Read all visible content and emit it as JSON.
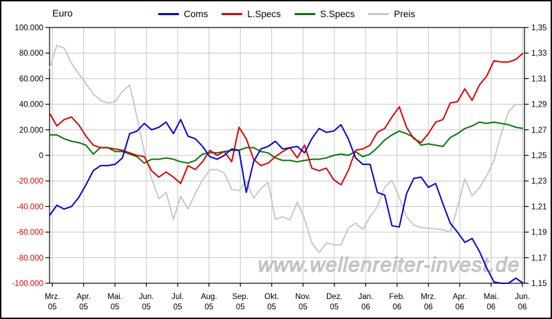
{
  "chart": {
    "title": "Euro",
    "watermark": "www.wellenreiter-invest.de",
    "colors": {
      "coms": "#0000dd",
      "lspecs": "#dd0000",
      "sspecs": "#007a00",
      "preis": "#c8c8c8",
      "grid": "#c6c6c6",
      "axis": "#000000",
      "negative_tick_label": "#dd0000",
      "watermark_fill": "#d4d4d4",
      "watermark_stroke": "#a0a0a0"
    }
  },
  "chart_data": {
    "type": "line",
    "title": "Euro",
    "legend_position": "top",
    "grid": true,
    "x_axis": {
      "months": [
        {
          "label": "Mrz.",
          "year": "05"
        },
        {
          "label": "Apr.",
          "year": "05"
        },
        {
          "label": "Mai.",
          "year": "05"
        },
        {
          "label": "Jun.",
          "year": "05"
        },
        {
          "label": "Jul.",
          "year": "05"
        },
        {
          "label": "Aug.",
          "year": "05"
        },
        {
          "label": "Sep.",
          "year": "05"
        },
        {
          "label": "Okt.",
          "year": "05"
        },
        {
          "label": "Nov.",
          "year": "05"
        },
        {
          "label": "Dez.",
          "year": "05"
        },
        {
          "label": "Jan.",
          "year": "06"
        },
        {
          "label": "Feb.",
          "year": "06"
        },
        {
          "label": "Mrz.",
          "year": "06"
        },
        {
          "label": "Apr.",
          "year": "06"
        },
        {
          "label": "Mai.",
          "year": "06"
        },
        {
          "label": "Jun.",
          "year": "06"
        }
      ]
    },
    "y_left": {
      "min": -100000,
      "max": 100000,
      "step": 20000,
      "tick_labels": [
        "100.000",
        "80.000",
        "60.000",
        "40.000",
        "20.000",
        "0",
        "-20.000",
        "-40.000",
        "-60.000",
        "-80.000",
        "-100.000"
      ]
    },
    "y_right": {
      "min": 1.15,
      "max": 1.35,
      "step": 0.02,
      "tick_labels": [
        "1,35",
        "1,33",
        "1,31",
        "1,29",
        "1,27",
        "1,25",
        "1,23",
        "1,21",
        "1,19",
        "1,17",
        "1,15"
      ]
    },
    "series": [
      {
        "name": "Coms",
        "axis": "left",
        "color": "#0000dd",
        "values": [
          -47000,
          -39000,
          -42000,
          -40000,
          -33000,
          -23000,
          -12000,
          -8000,
          -8000,
          -7000,
          -2000,
          17000,
          19000,
          25000,
          20000,
          22000,
          26000,
          17000,
          28000,
          15000,
          13000,
          7000,
          -1000,
          -3000,
          0,
          5000,
          4000,
          -29000,
          -5000,
          5000,
          7000,
          11000,
          5000,
          6000,
          7000,
          2000,
          13000,
          21000,
          18000,
          19000,
          24000,
          13000,
          -2000,
          -7000,
          -7000,
          -29000,
          -31000,
          -55000,
          -56000,
          -30000,
          -18000,
          -17000,
          -25000,
          -22000,
          -38000,
          -53000,
          -60000,
          -68000,
          -65000,
          -75000,
          -88000,
          -99000,
          -100000,
          -100000,
          -96000,
          -100000
        ]
      },
      {
        "name": "L.Specs",
        "axis": "left",
        "color": "#dd0000",
        "values": [
          33000,
          23000,
          28000,
          30000,
          24000,
          15000,
          8000,
          6000,
          6000,
          5000,
          4000,
          2000,
          0,
          -1000,
          -12000,
          -17000,
          -13000,
          -17000,
          -22000,
          -8000,
          -11000,
          -5000,
          4000,
          0,
          3000,
          -5000,
          22000,
          13000,
          -3000,
          -8000,
          -6000,
          -1000,
          3000,
          6000,
          -2000,
          8000,
          -10000,
          -12000,
          -10000,
          -19000,
          -23000,
          -12000,
          4000,
          5000,
          8000,
          18000,
          21000,
          30000,
          38000,
          22000,
          13000,
          10000,
          17000,
          26000,
          28000,
          41000,
          42000,
          52000,
          43000,
          55000,
          62000,
          74000,
          73000,
          73000,
          75000,
          80000
        ]
      },
      {
        "name": "S.Specs",
        "axis": "left",
        "color": "#007a00",
        "values": [
          16000,
          16000,
          13000,
          11000,
          10000,
          8000,
          1000,
          6000,
          6000,
          3000,
          3000,
          1000,
          -1000,
          -6000,
          -3000,
          -3000,
          -2000,
          -3000,
          -5000,
          -6000,
          -4000,
          1000,
          2000,
          2000,
          3000,
          4000,
          4000,
          6000,
          6000,
          3000,
          2000,
          -2000,
          -4000,
          -4000,
          -5000,
          -4000,
          -3000,
          -3000,
          -2000,
          0,
          1000,
          0,
          3000,
          -1000,
          1000,
          6000,
          12000,
          16000,
          19000,
          17000,
          14000,
          8000,
          9000,
          8000,
          7000,
          14000,
          17000,
          21000,
          23000,
          26000,
          25000,
          26000,
          25000,
          24000,
          22000,
          21000
        ]
      },
      {
        "name": "Preis",
        "axis": "right",
        "color": "#c8c8c8",
        "values": [
          1.318,
          1.336,
          1.334,
          1.322,
          1.314,
          1.306,
          1.298,
          1.293,
          1.291,
          1.292,
          1.3,
          1.305,
          1.28,
          1.253,
          1.232,
          1.216,
          1.221,
          1.2,
          1.218,
          1.208,
          1.22,
          1.231,
          1.2385,
          1.239,
          1.236,
          1.2235,
          1.2225,
          1.23,
          1.2165,
          1.224,
          1.229,
          1.2,
          1.202,
          1.1995,
          1.2135,
          1.2005,
          1.1815,
          1.174,
          1.1815,
          1.18,
          1.18,
          1.193,
          1.197,
          1.192,
          1.202,
          1.21,
          1.225,
          1.2305,
          1.217,
          1.202,
          1.1955,
          1.1935,
          1.193,
          1.1925,
          1.192,
          1.19,
          1.2095,
          1.2315,
          1.2185,
          1.2245,
          1.234,
          1.246,
          1.267,
          1.284,
          1.29,
          1.2895
        ]
      }
    ]
  }
}
